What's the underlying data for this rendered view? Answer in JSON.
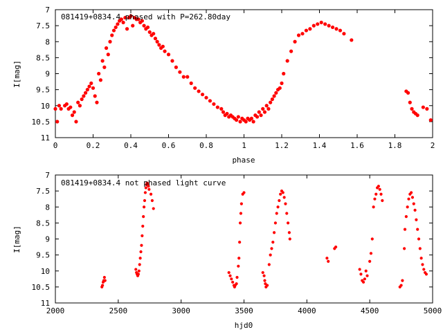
{
  "chart_data": [
    {
      "type": "scatter",
      "title": "081419+0834.4 phased with P=262.80day",
      "xlabel": "phase",
      "ylabel": "I[mag]",
      "xlim": [
        0,
        2
      ],
      "ylim": [
        11,
        7
      ],
      "y_inverted": true,
      "grid": false,
      "marker_color": "#ff0000",
      "x_ticks": [
        0,
        0.2,
        0.4,
        0.6,
        0.8,
        1,
        1.2,
        1.4,
        1.6,
        1.8,
        2
      ],
      "x_tick_labels": [
        "0",
        "0.2",
        "0.4",
        "0.6",
        "0.8",
        "1",
        "1.2",
        "1.4",
        "1.6",
        "1.8",
        "2"
      ],
      "y_ticks": [
        7,
        7.5,
        8,
        8.5,
        9,
        9.5,
        10,
        10.5,
        11
      ],
      "y_tick_labels": [
        "7",
        "7.5",
        "8",
        "8.5",
        "9",
        "9.5",
        "10",
        "10.5",
        "11"
      ],
      "points": [
        [
          0.0,
          10.1
        ],
        [
          0.01,
          10.5
        ],
        [
          0.02,
          10.0
        ],
        [
          0.03,
          10.1
        ],
        [
          0.05,
          10.0
        ],
        [
          0.06,
          9.95
        ],
        [
          0.07,
          10.1
        ],
        [
          0.08,
          10.05
        ],
        [
          0.09,
          10.3
        ],
        [
          0.1,
          10.2
        ],
        [
          0.11,
          10.5
        ],
        [
          0.12,
          9.9
        ],
        [
          0.13,
          10.0
        ],
        [
          0.14,
          9.8
        ],
        [
          0.15,
          9.7
        ],
        [
          0.16,
          9.6
        ],
        [
          0.17,
          9.5
        ],
        [
          0.18,
          9.4
        ],
        [
          0.19,
          9.3
        ],
        [
          0.2,
          9.45
        ],
        [
          0.21,
          9.7
        ],
        [
          0.22,
          9.9
        ],
        [
          0.23,
          9.0
        ],
        [
          0.24,
          9.2
        ],
        [
          0.25,
          8.6
        ],
        [
          0.26,
          8.8
        ],
        [
          0.27,
          8.2
        ],
        [
          0.28,
          8.4
        ],
        [
          0.29,
          8.0
        ],
        [
          0.3,
          7.8
        ],
        [
          0.31,
          7.65
        ],
        [
          0.32,
          7.55
        ],
        [
          0.33,
          7.45
        ],
        [
          0.34,
          7.35
        ],
        [
          0.35,
          7.3
        ],
        [
          0.36,
          7.4
        ],
        [
          0.37,
          7.25
        ],
        [
          0.38,
          7.6
        ],
        [
          0.39,
          7.25
        ],
        [
          0.4,
          7.2
        ],
        [
          0.41,
          7.5
        ],
        [
          0.42,
          7.25
        ],
        [
          0.43,
          7.3
        ],
        [
          0.44,
          7.3
        ],
        [
          0.45,
          7.4
        ],
        [
          0.46,
          7.35
        ],
        [
          0.47,
          7.5
        ],
        [
          0.48,
          7.6
        ],
        [
          0.49,
          7.55
        ],
        [
          0.5,
          7.7
        ],
        [
          0.51,
          7.8
        ],
        [
          0.52,
          7.75
        ],
        [
          0.53,
          7.9
        ],
        [
          0.54,
          8.0
        ],
        [
          0.55,
          8.1
        ],
        [
          0.56,
          8.2
        ],
        [
          0.57,
          8.15
        ],
        [
          0.58,
          8.3
        ],
        [
          0.6,
          8.4
        ],
        [
          0.62,
          8.6
        ],
        [
          0.64,
          8.8
        ],
        [
          0.66,
          8.95
        ],
        [
          0.68,
          9.1
        ],
        [
          0.7,
          9.1
        ],
        [
          0.72,
          9.3
        ],
        [
          0.74,
          9.45
        ],
        [
          0.76,
          9.55
        ],
        [
          0.78,
          9.65
        ],
        [
          0.8,
          9.75
        ],
        [
          0.82,
          9.85
        ],
        [
          0.84,
          9.95
        ],
        [
          0.86,
          10.05
        ],
        [
          0.88,
          10.1
        ],
        [
          0.89,
          10.2
        ],
        [
          0.9,
          10.3
        ],
        [
          0.91,
          10.25
        ],
        [
          0.92,
          10.35
        ],
        [
          0.93,
          10.3
        ],
        [
          0.94,
          10.35
        ],
        [
          0.95,
          10.4
        ],
        [
          0.96,
          10.45
        ],
        [
          0.97,
          10.35
        ],
        [
          0.98,
          10.5
        ],
        [
          0.99,
          10.4
        ],
        [
          1.0,
          10.45
        ],
        [
          1.01,
          10.5
        ],
        [
          1.02,
          10.4
        ],
        [
          1.03,
          10.45
        ],
        [
          1.04,
          10.4
        ],
        [
          1.05,
          10.5
        ],
        [
          1.06,
          10.3
        ],
        [
          1.07,
          10.35
        ],
        [
          1.08,
          10.2
        ],
        [
          1.09,
          10.3
        ],
        [
          1.1,
          10.1
        ],
        [
          1.11,
          10.2
        ],
        [
          1.12,
          10.0
        ],
        [
          1.13,
          10.1
        ],
        [
          1.14,
          9.9
        ],
        [
          1.15,
          9.8
        ],
        [
          1.16,
          9.7
        ],
        [
          1.17,
          9.6
        ],
        [
          1.18,
          9.5
        ],
        [
          1.19,
          9.45
        ],
        [
          1.2,
          9.3
        ],
        [
          1.21,
          9.0
        ],
        [
          1.23,
          8.6
        ],
        [
          1.25,
          8.3
        ],
        [
          1.27,
          8.0
        ],
        [
          1.29,
          7.8
        ],
        [
          1.31,
          7.75
        ],
        [
          1.33,
          7.65
        ],
        [
          1.35,
          7.6
        ],
        [
          1.37,
          7.5
        ],
        [
          1.39,
          7.45
        ],
        [
          1.41,
          7.4
        ],
        [
          1.43,
          7.45
        ],
        [
          1.45,
          7.5
        ],
        [
          1.47,
          7.55
        ],
        [
          1.49,
          7.6
        ],
        [
          1.51,
          7.65
        ],
        [
          1.53,
          7.75
        ],
        [
          1.57,
          7.95
        ],
        [
          1.86,
          9.55
        ],
        [
          1.87,
          9.6
        ],
        [
          1.88,
          9.9
        ],
        [
          1.89,
          10.1
        ],
        [
          1.9,
          10.2
        ],
        [
          1.91,
          10.25
        ],
        [
          1.92,
          10.3
        ],
        [
          1.95,
          10.05
        ],
        [
          1.97,
          10.1
        ],
        [
          1.99,
          10.45
        ]
      ]
    },
    {
      "type": "scatter",
      "title": "081419+0834.4 not phased light curve",
      "xlabel": "hjd0",
      "ylabel": "I[mag]",
      "xlim": [
        2000,
        5000
      ],
      "ylim": [
        11,
        7
      ],
      "y_inverted": true,
      "grid": false,
      "marker_color": "#ff0000",
      "x_ticks": [
        2000,
        2500,
        3000,
        3500,
        4000,
        4500,
        5000
      ],
      "x_tick_labels": [
        "2000",
        "2500",
        "3000",
        "3500",
        "4000",
        "4500",
        "5000"
      ],
      "y_ticks": [
        7,
        7.5,
        8,
        8.5,
        9,
        9.5,
        10,
        10.5,
        11
      ],
      "y_tick_labels": [
        "7",
        "7.5",
        "8",
        "8.5",
        "9",
        "9.5",
        "10",
        "10.5",
        "11"
      ],
      "points": [
        [
          2370,
          10.5
        ],
        [
          2375,
          10.45
        ],
        [
          2380,
          10.35
        ],
        [
          2385,
          10.3
        ],
        [
          2390,
          10.2
        ],
        [
          2395,
          10.3
        ],
        [
          2640,
          9.95
        ],
        [
          2645,
          10.05
        ],
        [
          2650,
          10.1
        ],
        [
          2655,
          10.15
        ],
        [
          2660,
          10.1
        ],
        [
          2665,
          10.0
        ],
        [
          2670,
          9.8
        ],
        [
          2675,
          9.6
        ],
        [
          2680,
          9.4
        ],
        [
          2685,
          9.2
        ],
        [
          2690,
          8.9
        ],
        [
          2695,
          8.6
        ],
        [
          2700,
          8.3
        ],
        [
          2705,
          8.0
        ],
        [
          2710,
          7.8
        ],
        [
          2715,
          7.55
        ],
        [
          2720,
          7.4
        ],
        [
          2725,
          7.3
        ],
        [
          2730,
          7.25
        ],
        [
          2735,
          7.3
        ],
        [
          2740,
          7.35
        ],
        [
          2745,
          7.45
        ],
        [
          2760,
          7.6
        ],
        [
          2770,
          7.8
        ],
        [
          2780,
          8.05
        ],
        [
          3380,
          10.05
        ],
        [
          3390,
          10.15
        ],
        [
          3400,
          10.25
        ],
        [
          3410,
          10.35
        ],
        [
          3420,
          10.45
        ],
        [
          3425,
          10.5
        ],
        [
          3430,
          10.45
        ],
        [
          3440,
          10.4
        ],
        [
          3445,
          10.2
        ],
        [
          3455,
          9.85
        ],
        [
          3460,
          9.6
        ],
        [
          3465,
          9.1
        ],
        [
          3470,
          8.5
        ],
        [
          3475,
          8.2
        ],
        [
          3480,
          7.9
        ],
        [
          3490,
          7.6
        ],
        [
          3500,
          7.55
        ],
        [
          3650,
          10.05
        ],
        [
          3660,
          10.15
        ],
        [
          3665,
          10.3
        ],
        [
          3670,
          10.4
        ],
        [
          3675,
          10.5
        ],
        [
          3685,
          10.45
        ],
        [
          3700,
          9.8
        ],
        [
          3710,
          9.5
        ],
        [
          3720,
          9.3
        ],
        [
          3730,
          9.1
        ],
        [
          3740,
          8.8
        ],
        [
          3750,
          8.5
        ],
        [
          3760,
          8.2
        ],
        [
          3770,
          8.0
        ],
        [
          3780,
          7.8
        ],
        [
          3790,
          7.6
        ],
        [
          3800,
          7.5
        ],
        [
          3810,
          7.55
        ],
        [
          3820,
          7.7
        ],
        [
          3830,
          7.9
        ],
        [
          3840,
          8.2
        ],
        [
          3850,
          8.5
        ],
        [
          3860,
          8.8
        ],
        [
          3865,
          9.0
        ],
        [
          4160,
          9.6
        ],
        [
          4170,
          9.7
        ],
        [
          4220,
          9.3
        ],
        [
          4230,
          9.25
        ],
        [
          4420,
          9.95
        ],
        [
          4430,
          10.1
        ],
        [
          4440,
          10.3
        ],
        [
          4450,
          10.35
        ],
        [
          4460,
          10.25
        ],
        [
          4470,
          10.0
        ],
        [
          4480,
          10.15
        ],
        [
          4500,
          9.7
        ],
        [
          4510,
          9.45
        ],
        [
          4520,
          9.0
        ],
        [
          4530,
          8.0
        ],
        [
          4540,
          7.75
        ],
        [
          4550,
          7.6
        ],
        [
          4560,
          7.4
        ],
        [
          4570,
          7.35
        ],
        [
          4580,
          7.45
        ],
        [
          4590,
          7.6
        ],
        [
          4600,
          7.8
        ],
        [
          4740,
          10.5
        ],
        [
          4750,
          10.45
        ],
        [
          4760,
          10.3
        ],
        [
          4775,
          9.3
        ],
        [
          4780,
          8.7
        ],
        [
          4790,
          8.3
        ],
        [
          4800,
          8.0
        ],
        [
          4810,
          7.75
        ],
        [
          4820,
          7.6
        ],
        [
          4830,
          7.55
        ],
        [
          4840,
          7.7
        ],
        [
          4850,
          7.9
        ],
        [
          4860,
          8.1
        ],
        [
          4870,
          8.4
        ],
        [
          4880,
          8.7
        ],
        [
          4890,
          9.0
        ],
        [
          4900,
          9.3
        ],
        [
          4910,
          9.6
        ],
        [
          4920,
          9.8
        ],
        [
          4930,
          9.95
        ],
        [
          4940,
          10.05
        ],
        [
          4950,
          10.1
        ]
      ]
    }
  ]
}
